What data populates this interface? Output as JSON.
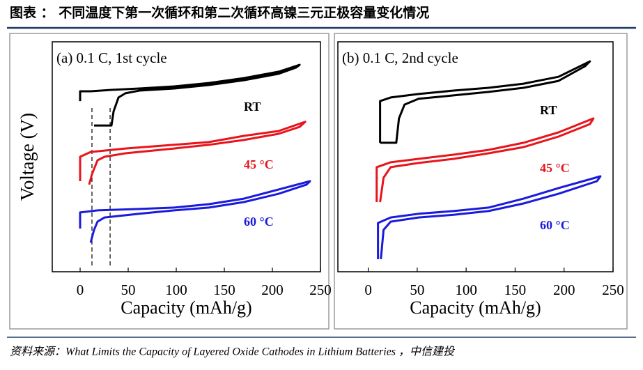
{
  "header": {
    "title": "图表 ： 不同温度下第一次循环和第二次循环高镍三元正极容量变化情况"
  },
  "chart_data": [
    {
      "type": "line",
      "title": "(a) 0.1 C, 1st cycle",
      "xlabel": "Capacity (mAh/g)",
      "ylabel": "Voltage (V)",
      "xlim": [
        -29,
        250
      ],
      "xticks": [
        0,
        50,
        100,
        150,
        200,
        250
      ],
      "ylim": [
        0,
        10
      ],
      "vlines": [
        12.3,
        31.2
      ],
      "series": [
        {
          "name": "RT",
          "color": "#000000",
          "x": [
            0,
            0,
            10.9,
            32.6,
            61.6,
            97.8,
            134,
            170.3,
            206.5,
            228.3,
            224.6,
            206.5,
            170.3,
            134,
            97.8,
            61.6,
            47.1,
            39.9,
            34.8,
            32.6,
            14.5
          ],
          "values": [
            7.42,
            7.85,
            7.85,
            7.91,
            7.97,
            8.06,
            8.21,
            8.42,
            8.7,
            9.0,
            8.88,
            8.61,
            8.33,
            8.12,
            7.97,
            7.88,
            7.76,
            7.58,
            6.97,
            6.36,
            6.36
          ]
        },
        {
          "name": "45 °C",
          "color": "#e8141c",
          "x": [
            0,
            0,
            10.9,
            47.1,
            97.8,
            134,
            170.3,
            206.5,
            234.1,
            228.3,
            206.5,
            170.3,
            134,
            97.8,
            47.1,
            25.4,
            18.1,
            12.3,
            9.4
          ],
          "values": [
            3.94,
            5.0,
            5.21,
            5.36,
            5.52,
            5.64,
            5.91,
            6.12,
            6.52,
            6.3,
            6.0,
            5.73,
            5.52,
            5.36,
            5.15,
            5.0,
            4.85,
            4.24,
            3.79
          ]
        },
        {
          "name": "60 °C",
          "color": "#1a1adc",
          "x": [
            0,
            0,
            18.1,
            61.6,
            97.8,
            134,
            170.3,
            206.5,
            239.1,
            235.5,
            206.5,
            170.3,
            134,
            97.8,
            61.6,
            25.4,
            18.1,
            14.5,
            10.9
          ],
          "values": [
            1.88,
            2.58,
            2.67,
            2.73,
            2.79,
            2.94,
            3.18,
            3.58,
            3.94,
            3.79,
            3.39,
            3.03,
            2.79,
            2.67,
            2.52,
            2.36,
            2.18,
            1.82,
            1.27
          ]
        }
      ]
    },
    {
      "type": "line",
      "title": "(b) 0.1 C, 2nd cycle",
      "xlabel": "Capacity (mAh/g)",
      "xlim": [
        -31,
        250
      ],
      "xticks": [
        0,
        50,
        100,
        150,
        200,
        250
      ],
      "ylim": [
        0,
        10
      ],
      "series": [
        {
          "name": "RT",
          "color": "#000000",
          "x": [
            12.1,
            12.1,
            22.9,
            51.4,
            87.1,
            122.9,
            158.6,
            194.3,
            226.4,
            221.4,
            194.3,
            158.6,
            122.9,
            87.1,
            51.4,
            37.1,
            31.4,
            28.6,
            12.1
          ],
          "values": [
            5.61,
            7.42,
            7.58,
            7.73,
            7.88,
            8.0,
            8.18,
            8.48,
            9.15,
            8.94,
            8.3,
            8.0,
            7.82,
            7.67,
            7.52,
            7.27,
            6.67,
            5.61,
            5.61
          ]
        },
        {
          "name": "45 °C",
          "color": "#e8141c",
          "x": [
            8.6,
            8.6,
            22.9,
            51.4,
            87.1,
            122.9,
            158.6,
            194.3,
            230,
            226.4,
            194.3,
            158.6,
            122.9,
            87.1,
            51.4,
            22.9,
            15.7,
            12.1
          ],
          "values": [
            3.03,
            4.55,
            4.76,
            4.91,
            5.09,
            5.3,
            5.61,
            6.06,
            6.67,
            6.42,
            5.88,
            5.42,
            5.15,
            4.91,
            4.73,
            4.55,
            4.09,
            3.03
          ]
        },
        {
          "name": "60 °C",
          "color": "#1a1adc",
          "x": [
            10,
            10,
            22.9,
            51.4,
            87.1,
            122.9,
            158.6,
            194.3,
            237.1,
            233.6,
            194.3,
            158.6,
            122.9,
            87.1,
            51.4,
            22.9,
            15.7,
            12.9
          ],
          "values": [
            0.55,
            2.12,
            2.36,
            2.52,
            2.64,
            2.79,
            3.18,
            3.64,
            4.15,
            3.94,
            3.39,
            2.97,
            2.64,
            2.48,
            2.36,
            2.18,
            1.82,
            0.55
          ]
        }
      ]
    }
  ],
  "source": "资料来源：What Limits the Capacity of Layered Oxide Cathodes in Lithium Batteries ，中信建投"
}
